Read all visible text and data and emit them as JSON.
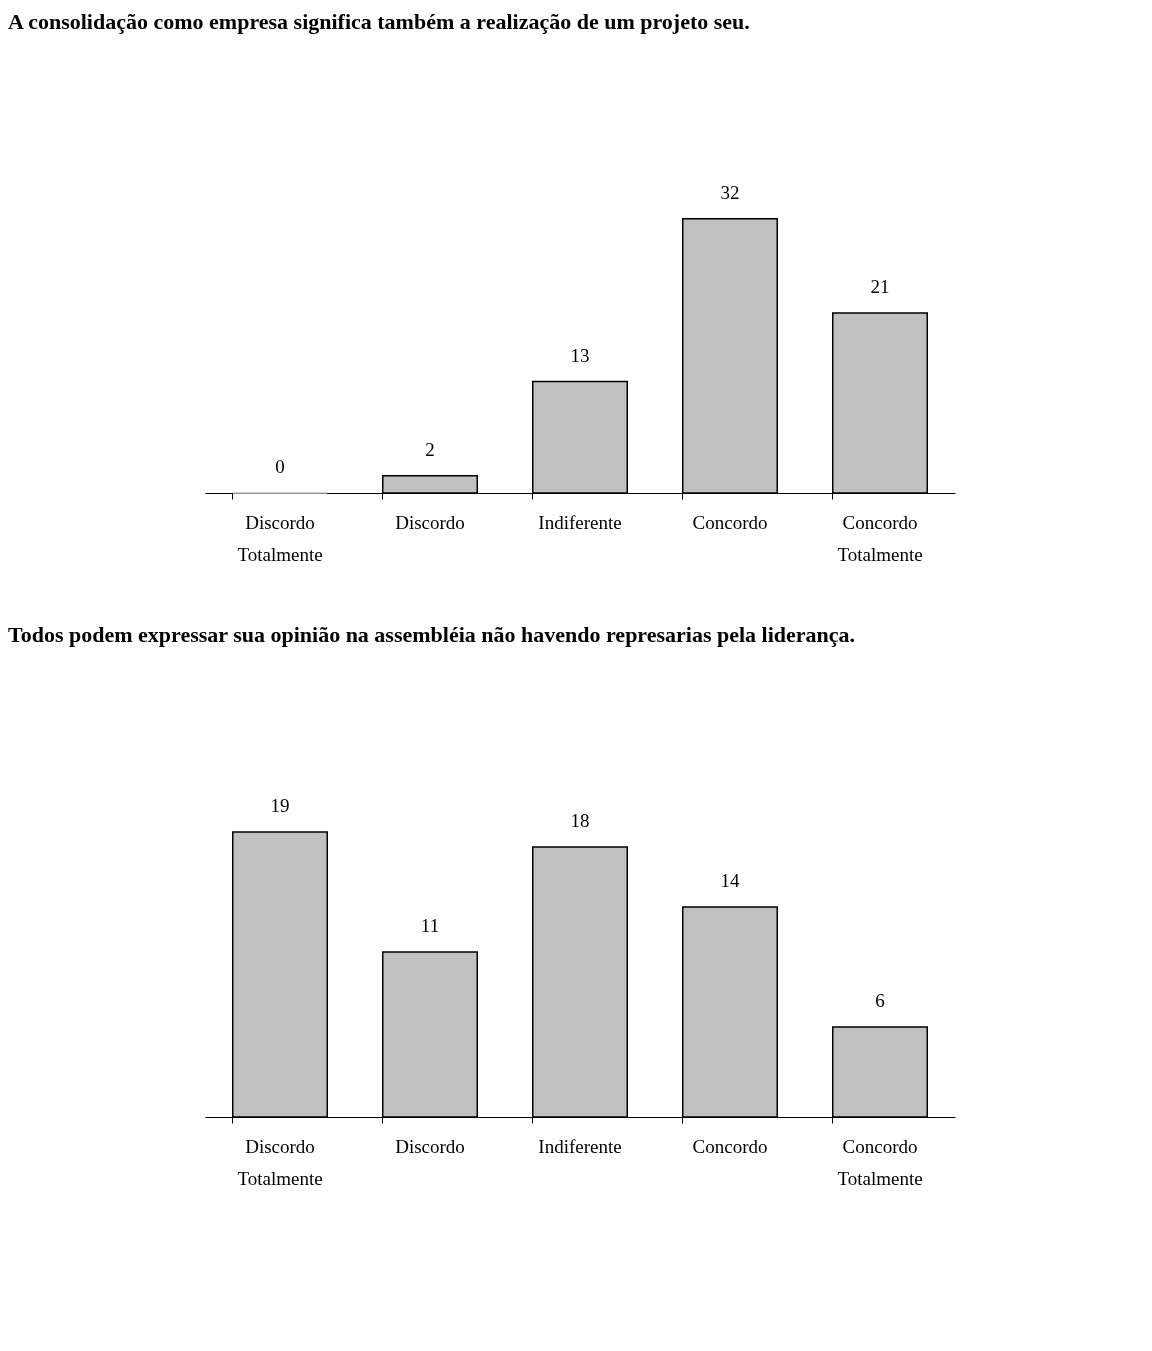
{
  "chart_data": [
    {
      "type": "bar",
      "title": "A consolidação como empresa significa também a realização de um projeto seu.",
      "categories": [
        "Discordo Totalmente",
        "Discordo",
        "Indiferente",
        "Concordo",
        "Concordo Totalmente"
      ],
      "values": [
        0,
        2,
        13,
        32,
        21
      ],
      "color": "#c0c0c0",
      "data_labels": true
    },
    {
      "type": "bar",
      "title": "Todos podem expressar sua opinião na assembléia não havendo represarias pela liderança.",
      "categories": [
        "Discordo Totalmente",
        "Discordo",
        "Indiferente",
        "Concordo",
        "Concordo Totalmente"
      ],
      "values": [
        19,
        11,
        18,
        14,
        6
      ],
      "color": "#c0c0c0",
      "data_labels": true
    }
  ]
}
